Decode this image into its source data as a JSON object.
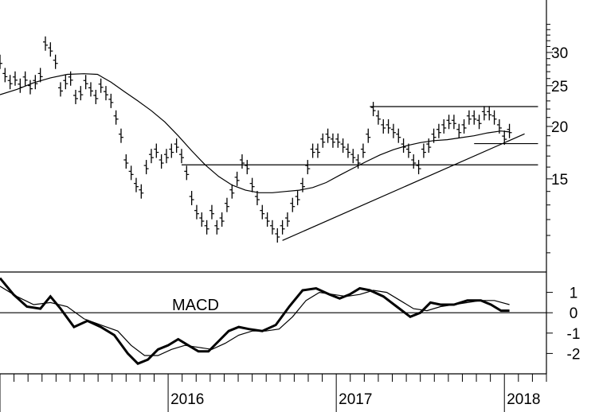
{
  "chart_data": [
    {
      "type": "ohlc",
      "title": "",
      "xlabel": "",
      "ylabel": "",
      "y_scale": "log",
      "ylim": [
        9.0,
        40.0
      ],
      "xlim": [
        2015.0,
        2018.25
      ],
      "y_ticks": [
        15,
        20,
        25,
        30
      ],
      "x_ticks": [
        "2016",
        "2017",
        "2018"
      ],
      "price_points": [
        [
          2015.0,
          28.5
        ],
        [
          2015.03,
          26.5
        ],
        [
          2015.06,
          25.5
        ],
        [
          2015.09,
          26.0
        ],
        [
          2015.12,
          25.0
        ],
        [
          2015.15,
          26.0
        ],
        [
          2015.18,
          24.8
        ],
        [
          2015.21,
          25.5
        ],
        [
          2015.24,
          26.5
        ],
        [
          2015.27,
          31.5
        ],
        [
          2015.3,
          30.5
        ],
        [
          2015.33,
          28.5
        ],
        [
          2015.36,
          24.5
        ],
        [
          2015.39,
          25.5
        ],
        [
          2015.42,
          26.0
        ],
        [
          2015.45,
          23.5
        ],
        [
          2015.48,
          24.0
        ],
        [
          2015.51,
          25.5
        ],
        [
          2015.54,
          24.5
        ],
        [
          2015.57,
          23.5
        ],
        [
          2015.6,
          25.0
        ],
        [
          2015.63,
          24.0
        ],
        [
          2015.66,
          23.0
        ],
        [
          2015.69,
          21.0
        ],
        [
          2015.72,
          19.0
        ],
        [
          2015.75,
          16.5
        ],
        [
          2015.78,
          15.5
        ],
        [
          2015.81,
          14.5
        ],
        [
          2015.84,
          14.0
        ],
        [
          2015.87,
          16.0
        ],
        [
          2015.9,
          17.0
        ],
        [
          2015.93,
          17.5
        ],
        [
          2015.96,
          16.5
        ],
        [
          2015.99,
          17.0
        ],
        [
          2016.02,
          17.5
        ],
        [
          2016.05,
          18.0
        ],
        [
          2016.08,
          17.0
        ],
        [
          2016.11,
          15.5
        ],
        [
          2016.14,
          13.5
        ],
        [
          2016.17,
          12.5
        ],
        [
          2016.2,
          12.0
        ],
        [
          2016.23,
          11.5
        ],
        [
          2016.26,
          12.5
        ],
        [
          2016.29,
          11.5
        ],
        [
          2016.32,
          12.0
        ],
        [
          2016.35,
          13.0
        ],
        [
          2016.38,
          14.0
        ],
        [
          2016.41,
          15.0
        ],
        [
          2016.44,
          16.5
        ],
        [
          2016.47,
          16.0
        ],
        [
          2016.5,
          14.5
        ],
        [
          2016.53,
          13.5
        ],
        [
          2016.56,
          12.5
        ],
        [
          2016.59,
          12.0
        ],
        [
          2016.62,
          11.5
        ],
        [
          2016.65,
          11.0
        ],
        [
          2016.68,
          11.5
        ],
        [
          2016.71,
          12.0
        ],
        [
          2016.74,
          13.0
        ],
        [
          2016.77,
          13.5
        ],
        [
          2016.8,
          14.5
        ],
        [
          2016.83,
          16.0
        ],
        [
          2016.86,
          17.5
        ],
        [
          2016.89,
          17.5
        ],
        [
          2016.92,
          18.5
        ],
        [
          2016.95,
          19.0
        ],
        [
          2016.98,
          18.5
        ],
        [
          2017.01,
          18.5
        ],
        [
          2017.04,
          18.0
        ],
        [
          2017.07,
          17.5
        ],
        [
          2017.1,
          17.0
        ],
        [
          2017.13,
          16.5
        ],
        [
          2017.16,
          17.5
        ],
        [
          2017.19,
          19.0
        ],
        [
          2017.22,
          22.0
        ],
        [
          2017.25,
          21.0
        ],
        [
          2017.28,
          20.0
        ],
        [
          2017.31,
          20.0
        ],
        [
          2017.34,
          19.5
        ],
        [
          2017.37,
          19.0
        ],
        [
          2017.4,
          18.0
        ],
        [
          2017.43,
          17.5
        ],
        [
          2017.46,
          16.5
        ],
        [
          2017.49,
          16.0
        ],
        [
          2017.52,
          17.5
        ],
        [
          2017.55,
          18.0
        ],
        [
          2017.58,
          19.0
        ],
        [
          2017.61,
          19.5
        ],
        [
          2017.64,
          20.0
        ],
        [
          2017.67,
          20.5
        ],
        [
          2017.7,
          20.5
        ],
        [
          2017.73,
          19.5
        ],
        [
          2017.76,
          20.0
        ],
        [
          2017.79,
          21.0
        ],
        [
          2017.82,
          21.0
        ],
        [
          2017.85,
          20.5
        ],
        [
          2017.88,
          21.5
        ],
        [
          2017.91,
          21.5
        ],
        [
          2017.94,
          21.0
        ],
        [
          2017.97,
          20.0
        ],
        [
          2018.0,
          18.8
        ],
        [
          2018.03,
          19.5
        ]
      ],
      "moving_average": [
        [
          2015.0,
          23.8
        ],
        [
          2015.1,
          24.5
        ],
        [
          2015.2,
          25.4
        ],
        [
          2015.3,
          26.1
        ],
        [
          2015.4,
          26.6
        ],
        [
          2015.5,
          26.7
        ],
        [
          2015.58,
          26.6
        ],
        [
          2015.66,
          25.5
        ],
        [
          2015.74,
          24.2
        ],
        [
          2015.82,
          23.0
        ],
        [
          2015.9,
          21.8
        ],
        [
          2015.98,
          20.5
        ],
        [
          2016.06,
          19.0
        ],
        [
          2016.14,
          17.5
        ],
        [
          2016.22,
          16.2
        ],
        [
          2016.3,
          15.2
        ],
        [
          2016.38,
          14.5
        ],
        [
          2016.46,
          14.1
        ],
        [
          2016.54,
          13.9
        ],
        [
          2016.62,
          13.9
        ],
        [
          2016.7,
          14.0
        ],
        [
          2016.78,
          14.1
        ],
        [
          2016.86,
          14.3
        ],
        [
          2016.94,
          14.7
        ],
        [
          2017.02,
          15.3
        ],
        [
          2017.1,
          15.9
        ],
        [
          2017.18,
          16.5
        ],
        [
          2017.26,
          17.1
        ],
        [
          2017.34,
          17.6
        ],
        [
          2017.42,
          18.0
        ],
        [
          2017.5,
          18.3
        ],
        [
          2017.58,
          18.5
        ],
        [
          2017.66,
          18.6
        ],
        [
          2017.74,
          18.8
        ],
        [
          2017.82,
          19.0
        ],
        [
          2017.9,
          19.3
        ],
        [
          2017.98,
          19.5
        ],
        [
          2018.03,
          19.4
        ]
      ],
      "trendlines": [
        {
          "name": "resistance",
          "x": [
            2017.2,
            2018.2
          ],
          "y": [
            22.3,
            22.3
          ]
        },
        {
          "name": "support-1",
          "x": [
            2016.08,
            2018.2
          ],
          "y": [
            16.2,
            16.2
          ]
        },
        {
          "name": "support-2",
          "x": [
            2017.82,
            2018.2
          ],
          "y": [
            18.2,
            18.2
          ]
        },
        {
          "name": "uptrend",
          "x": [
            2016.68,
            2018.12
          ],
          "y": [
            10.7,
            19.2
          ]
        }
      ]
    },
    {
      "type": "line",
      "title": "MACD",
      "xlabel": "",
      "ylabel": "",
      "ylim": [
        -3.0,
        2.0
      ],
      "y_ticks": [
        -2,
        -1,
        0,
        1
      ],
      "series": [
        {
          "x": [
            2015.0,
            2015.08,
            2015.16,
            2015.24,
            2015.3,
            2015.36,
            2015.44,
            2015.52,
            2015.6,
            2015.68,
            2015.76,
            2015.82,
            2015.88,
            2015.94,
            2016.0,
            2016.06,
            2016.12,
            2016.18,
            2016.24,
            2016.3,
            2016.36,
            2016.42,
            2016.48,
            2016.56,
            2016.64,
            2016.72,
            2016.8,
            2016.88,
            2016.96,
            2017.02,
            2017.08,
            2017.14,
            2017.2,
            2017.28,
            2017.36,
            2017.44,
            2017.5,
            2017.56,
            2017.62,
            2017.7,
            2017.78,
            2017.86,
            2017.92,
            2017.98,
            2018.03
          ],
          "values": [
            1.7,
            0.9,
            0.3,
            0.2,
            0.8,
            0.2,
            -0.7,
            -0.4,
            -0.7,
            -1.1,
            -2.0,
            -2.5,
            -2.3,
            -1.8,
            -1.6,
            -1.3,
            -1.6,
            -1.9,
            -1.9,
            -1.4,
            -0.9,
            -0.7,
            -0.8,
            -0.9,
            -0.6,
            0.3,
            1.1,
            1.2,
            0.9,
            0.7,
            0.9,
            1.2,
            1.1,
            0.8,
            0.3,
            -0.2,
            0.0,
            0.5,
            0.4,
            0.4,
            0.6,
            0.6,
            0.4,
            0.1,
            0.1
          ]
        },
        {
          "x": [
            2015.0,
            2015.1,
            2015.2,
            2015.3,
            2015.4,
            2015.5,
            2015.6,
            2015.7,
            2015.78,
            2015.86,
            2015.94,
            2016.02,
            2016.1,
            2016.18,
            2016.26,
            2016.34,
            2016.42,
            2016.5,
            2016.58,
            2016.66,
            2016.74,
            2016.82,
            2016.9,
            2016.98,
            2017.06,
            2017.14,
            2017.22,
            2017.3,
            2017.38,
            2017.46,
            2017.54,
            2017.62,
            2017.7,
            2017.78,
            2017.86,
            2017.94,
            2018.03
          ],
          "values": [
            1.3,
            0.8,
            0.4,
            0.5,
            0.3,
            -0.3,
            -0.6,
            -0.9,
            -1.6,
            -2.1,
            -2.1,
            -1.8,
            -1.6,
            -1.7,
            -1.8,
            -1.5,
            -1.1,
            -0.9,
            -0.9,
            -0.8,
            -0.2,
            0.6,
            1.0,
            0.9,
            0.8,
            0.9,
            1.1,
            1.0,
            0.6,
            0.2,
            0.1,
            0.3,
            0.4,
            0.5,
            0.6,
            0.6,
            0.4
          ]
        }
      ]
    }
  ]
}
